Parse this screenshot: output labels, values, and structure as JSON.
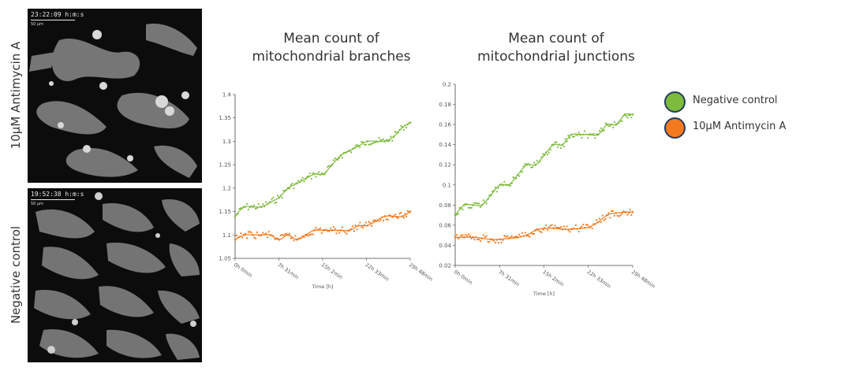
{
  "panels": [
    {
      "label": "10μM Antimycin A",
      "timestamp": "23:22:09 h:m:s",
      "scale": "50 μm"
    },
    {
      "label": "Negative control",
      "timestamp": "19:52:38 h:m:s",
      "scale": "50 μm"
    }
  ],
  "legend": [
    {
      "label": "Negative control",
      "color": "#7dbb3c"
    },
    {
      "label": "10μM Antimycin A",
      "color": "#f47a20"
    }
  ],
  "chart_data": [
    {
      "type": "scatter",
      "title_line1": "Mean count of",
      "title_line2": "mitochondrial branches",
      "xlabel": "Time [h]",
      "ylabel": "",
      "xticks": [
        "0h 0min",
        "7h 31min",
        "15h 2min",
        "22h 33min",
        "29h 48min"
      ],
      "yticks": [
        "1.05",
        "1.1",
        "1.15",
        "1.2",
        "1.25",
        "1.3",
        "1.35",
        "1.4"
      ],
      "ylim": [
        1.05,
        1.4
      ],
      "xlim": [
        0,
        29.8
      ],
      "grid": false,
      "trend": "smoothed line per series",
      "series": [
        {
          "name": "Negative control",
          "color": "#7dbb3c",
          "x": [
            0,
            1.5,
            3,
            4.5,
            6,
            7.5,
            9,
            10.5,
            12,
            13.5,
            15,
            16.5,
            18,
            19.5,
            21,
            22.5,
            24,
            25.5,
            27,
            28.5,
            29.8
          ],
          "y": [
            1.14,
            1.16,
            1.16,
            1.16,
            1.17,
            1.18,
            1.2,
            1.21,
            1.22,
            1.23,
            1.23,
            1.25,
            1.27,
            1.28,
            1.29,
            1.3,
            1.3,
            1.3,
            1.31,
            1.33,
            1.34
          ]
        },
        {
          "name": "10μM Antimycin A",
          "color": "#f47a20",
          "x": [
            0,
            1.5,
            3,
            4.5,
            6,
            7.5,
            9,
            10.5,
            12,
            13.5,
            15,
            16.5,
            18,
            19.5,
            21,
            22.5,
            24,
            25.5,
            27,
            28.5,
            29.8
          ],
          "y": [
            1.09,
            1.1,
            1.1,
            1.1,
            1.1,
            1.09,
            1.1,
            1.09,
            1.1,
            1.11,
            1.11,
            1.11,
            1.11,
            1.11,
            1.12,
            1.12,
            1.13,
            1.14,
            1.14,
            1.14,
            1.15
          ]
        }
      ]
    },
    {
      "type": "scatter",
      "title_line1": "Mean count of",
      "title_line2": "mitochondrial junctions",
      "xlabel": "Time [h]",
      "ylabel": "",
      "xticks": [
        "0h 0min",
        "7h 31min",
        "15h 2min",
        "22h 33min",
        "29h 48min"
      ],
      "yticks": [
        "0.02",
        "0.04",
        "0.06",
        "0.08",
        "0.1",
        "0.12",
        "0.14",
        "0.16",
        "0.18",
        "0.2"
      ],
      "ylim": [
        0.02,
        0.2
      ],
      "xlim": [
        0,
        29.8
      ],
      "grid": false,
      "trend": "smoothed line per series",
      "series": [
        {
          "name": "Negative control",
          "color": "#7dbb3c",
          "x": [
            0,
            1.5,
            3,
            4.5,
            6,
            7.5,
            9,
            10.5,
            12,
            13.5,
            15,
            16.5,
            18,
            19.5,
            21,
            22.5,
            24,
            25.5,
            27,
            28.5,
            29.8
          ],
          "y": [
            0.07,
            0.08,
            0.08,
            0.08,
            0.09,
            0.1,
            0.1,
            0.11,
            0.12,
            0.12,
            0.13,
            0.14,
            0.14,
            0.15,
            0.15,
            0.15,
            0.15,
            0.16,
            0.16,
            0.17,
            0.17
          ]
        },
        {
          "name": "10μM Antimycin A",
          "color": "#f47a20",
          "x": [
            0,
            1.5,
            3,
            4.5,
            6,
            7.5,
            9,
            10.5,
            12,
            13.5,
            15,
            16.5,
            18,
            19.5,
            21,
            22.5,
            24,
            25.5,
            27,
            28.5,
            29.8
          ],
          "y": [
            0.048,
            0.048,
            0.048,
            0.047,
            0.046,
            0.046,
            0.047,
            0.048,
            0.05,
            0.055,
            0.057,
            0.057,
            0.056,
            0.056,
            0.057,
            0.058,
            0.063,
            0.07,
            0.072,
            0.073,
            0.073
          ]
        }
      ]
    }
  ]
}
